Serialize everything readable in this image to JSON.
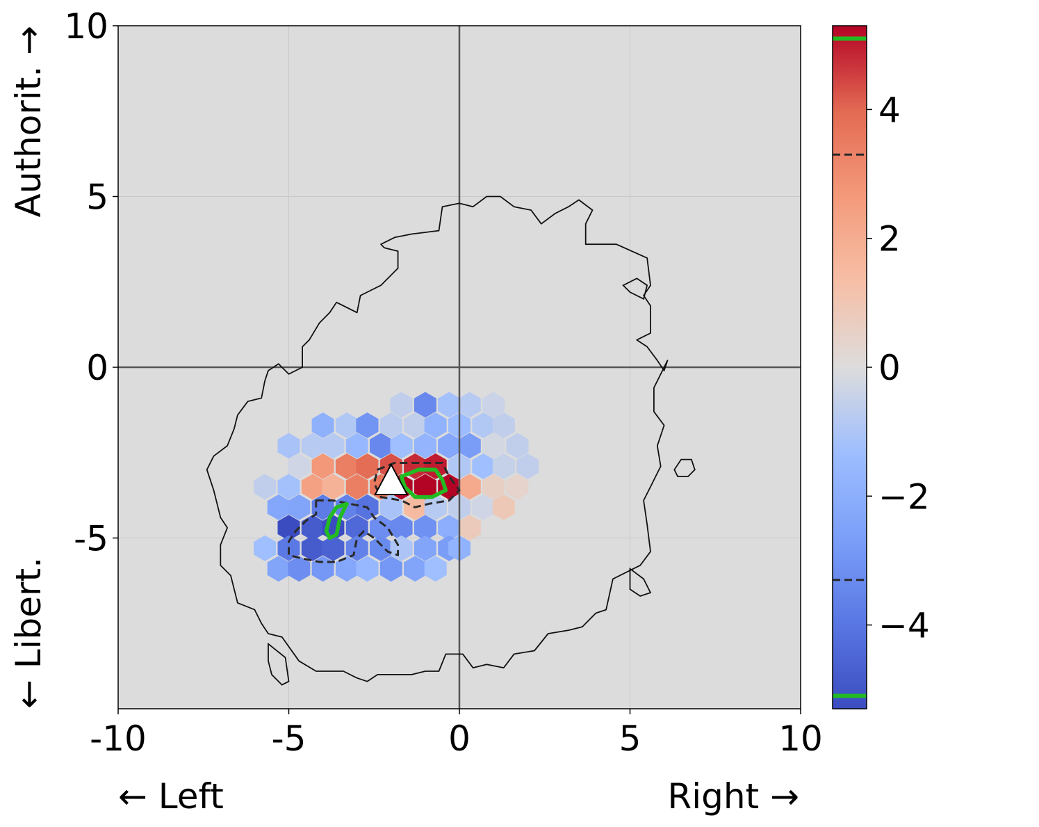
{
  "chart_data": {
    "type": "heatmap",
    "subtype": "hexbin political compass map",
    "xlim": [
      -10,
      10
    ],
    "ylim": [
      -10,
      10
    ],
    "x_ticks": [
      -10,
      -5,
      0,
      5,
      10
    ],
    "y_ticks": [
      -5,
      0,
      5,
      10
    ],
    "x_tick_labels": [
      "-10",
      "-5",
      "0",
      "5",
      "10"
    ],
    "y_tick_labels": [
      "-5",
      "0",
      "5",
      "10"
    ],
    "x_label_left": "← Left",
    "x_label_right": "Right →",
    "y_label_bottom": "← Libert.",
    "y_label_top": "Authorit. →",
    "grid": true,
    "background_color": "#dcdcdc",
    "colormap": "coolwarm",
    "colorbar": {
      "vmin": -5.3,
      "vmax": 5.3,
      "ticks": [
        -4,
        -2,
        0,
        2,
        4
      ],
      "tick_labels": [
        "−4",
        "−2",
        "0",
        "2",
        "4"
      ],
      "dashed_threshold_lines": [
        -3.3,
        3.3
      ],
      "green_threshold_lines": [
        -5.1,
        5.1
      ]
    },
    "outline_contour": [
      [
        -0.5,
        4.7
      ],
      [
        0.0,
        4.8
      ],
      [
        0.4,
        4.7
      ],
      [
        0.8,
        5.0
      ],
      [
        1.2,
        5.0
      ],
      [
        1.6,
        4.7
      ],
      [
        2.1,
        4.6
      ],
      [
        2.4,
        4.2
      ],
      [
        2.8,
        4.5
      ],
      [
        3.2,
        4.7
      ],
      [
        3.5,
        4.9
      ],
      [
        3.9,
        4.6
      ],
      [
        3.7,
        4.2
      ],
      [
        3.7,
        3.6
      ],
      [
        4.6,
        3.6
      ],
      [
        5.5,
        3.2
      ],
      [
        5.6,
        2.4
      ],
      [
        5.4,
        2.1
      ],
      [
        5.6,
        1.8
      ],
      [
        5.6,
        1.0
      ],
      [
        5.2,
        0.8
      ],
      [
        5.5,
        0.6
      ],
      [
        5.8,
        0.2
      ],
      [
        6.0,
        -0.1
      ],
      [
        6.1,
        0.2
      ],
      [
        5.7,
        -0.6
      ],
      [
        5.7,
        -1.3
      ],
      [
        6.0,
        -1.7
      ],
      [
        5.8,
        -2.3
      ],
      [
        5.9,
        -2.9
      ],
      [
        5.6,
        -3.5
      ],
      [
        5.4,
        -3.9
      ],
      [
        5.5,
        -4.6
      ],
      [
        5.6,
        -5.4
      ],
      [
        5.3,
        -5.8
      ],
      [
        4.9,
        -6.0
      ],
      [
        4.5,
        -6.2
      ],
      [
        4.3,
        -7.1
      ],
      [
        4.0,
        -7.2
      ],
      [
        3.6,
        -7.6
      ],
      [
        3.2,
        -7.7
      ],
      [
        2.6,
        -7.8
      ],
      [
        2.2,
        -8.3
      ],
      [
        1.6,
        -8.4
      ],
      [
        1.3,
        -8.8
      ],
      [
        0.8,
        -8.7
      ],
      [
        0.4,
        -8.8
      ],
      [
        0.1,
        -8.4
      ],
      [
        -0.4,
        -8.4
      ],
      [
        -0.6,
        -8.9
      ],
      [
        -1.0,
        -8.9
      ],
      [
        -1.4,
        -9.0
      ],
      [
        -2.4,
        -9.0
      ],
      [
        -2.7,
        -9.2
      ],
      [
        -3.0,
        -9.1
      ],
      [
        -3.4,
        -8.9
      ],
      [
        -4.2,
        -8.9
      ],
      [
        -4.7,
        -8.6
      ],
      [
        -5.2,
        -7.9
      ],
      [
        -5.6,
        -7.8
      ],
      [
        -5.8,
        -7.5
      ],
      [
        -6.0,
        -7.1
      ],
      [
        -6.5,
        -6.9
      ],
      [
        -6.7,
        -6.1
      ],
      [
        -7.0,
        -5.8
      ],
      [
        -7.0,
        -5.2
      ],
      [
        -6.8,
        -4.7
      ],
      [
        -7.0,
        -4.4
      ],
      [
        -7.2,
        -3.6
      ],
      [
        -7.4,
        -3.0
      ],
      [
        -7.2,
        -2.6
      ],
      [
        -6.8,
        -2.3
      ],
      [
        -6.6,
        -1.8
      ],
      [
        -6.5,
        -1.4
      ],
      [
        -6.2,
        -1.0
      ],
      [
        -5.8,
        -0.9
      ],
      [
        -5.7,
        -0.4
      ],
      [
        -5.6,
        -0.1
      ],
      [
        -5.3,
        0.1
      ],
      [
        -5.0,
        -0.2
      ],
      [
        -4.6,
        0.0
      ],
      [
        -4.6,
        0.6
      ],
      [
        -4.4,
        0.8
      ],
      [
        -4.1,
        1.3
      ],
      [
        -3.8,
        1.6
      ],
      [
        -3.6,
        1.9
      ],
      [
        -3.0,
        1.6
      ],
      [
        -2.9,
        2.1
      ],
      [
        -2.7,
        2.2
      ],
      [
        -2.3,
        2.4
      ],
      [
        -1.8,
        2.9
      ],
      [
        -1.8,
        3.4
      ],
      [
        -2.2,
        3.5
      ],
      [
        -2.3,
        3.6
      ],
      [
        -1.9,
        3.8
      ],
      [
        -1.4,
        3.9
      ],
      [
        -0.6,
        4.0
      ],
      [
        -0.5,
        4.7
      ]
    ],
    "outline_islands": [
      [
        [
          5.2,
          2.6
        ],
        [
          5.5,
          2.4
        ],
        [
          5.4,
          2.0
        ],
        [
          5.0,
          2.2
        ],
        [
          4.8,
          2.4
        ],
        [
          5.2,
          2.6
        ]
      ],
      [
        [
          6.5,
          -2.7
        ],
        [
          6.8,
          -2.7
        ],
        [
          6.9,
          -3.0
        ],
        [
          6.7,
          -3.2
        ],
        [
          6.4,
          -3.2
        ],
        [
          6.3,
          -3.0
        ],
        [
          6.5,
          -2.7
        ]
      ],
      [
        [
          5.0,
          -5.9
        ],
        [
          5.4,
          -6.2
        ],
        [
          5.6,
          -6.6
        ],
        [
          5.3,
          -6.7
        ],
        [
          5.0,
          -6.5
        ],
        [
          5.0,
          -5.9
        ]
      ],
      [
        [
          -5.6,
          -8.1
        ],
        [
          -5.1,
          -8.5
        ],
        [
          -5.0,
          -9.2
        ],
        [
          -5.2,
          -9.3
        ],
        [
          -5.5,
          -9.0
        ],
        [
          -5.6,
          -8.6
        ],
        [
          -5.6,
          -8.1
        ]
      ]
    ],
    "hex_cells": [
      [
        -1.7,
        -1.1,
        -0.6
      ],
      [
        -1.0,
        -1.1,
        -3.4
      ],
      [
        -0.3,
        -1.1,
        -1.2
      ],
      [
        0.3,
        -1.1,
        -0.8
      ],
      [
        1.0,
        -1.1,
        -0.4
      ],
      [
        -4.0,
        -1.7,
        -1.9
      ],
      [
        -3.3,
        -1.7,
        -0.9
      ],
      [
        -2.7,
        -1.7,
        -3.0
      ],
      [
        -2.0,
        -1.7,
        -0.7
      ],
      [
        -1.3,
        -1.7,
        -0.6
      ],
      [
        -0.7,
        -1.7,
        -1.8
      ],
      [
        0.0,
        -1.7,
        -1.4
      ],
      [
        0.7,
        -1.7,
        -0.9
      ],
      [
        1.3,
        -1.7,
        -0.6
      ],
      [
        -5.0,
        -2.3,
        -1.1
      ],
      [
        -4.3,
        -2.3,
        -0.8
      ],
      [
        -3.7,
        -2.3,
        -0.8
      ],
      [
        -3.0,
        -2.3,
        -1.6
      ],
      [
        -2.3,
        -2.3,
        -3.4
      ],
      [
        -1.7,
        -2.3,
        -1.3
      ],
      [
        -1.0,
        -2.3,
        -1.7
      ],
      [
        -0.3,
        -2.3,
        -2.3
      ],
      [
        0.3,
        -2.3,
        -2.7
      ],
      [
        1.0,
        -2.3,
        -0.2
      ],
      [
        1.7,
        -2.3,
        -0.6
      ],
      [
        -4.7,
        -2.9,
        -0.3
      ],
      [
        -4.0,
        -2.9,
        2.7
      ],
      [
        -3.3,
        -2.9,
        3.4
      ],
      [
        -2.7,
        -2.9,
        3.9
      ],
      [
        -2.0,
        -2.9,
        4.3
      ],
      [
        -1.3,
        -2.9,
        4.8
      ],
      [
        -0.7,
        -2.9,
        5.0
      ],
      [
        0.0,
        -2.9,
        -0.9
      ],
      [
        0.7,
        -2.9,
        -1.3
      ],
      [
        1.3,
        -2.9,
        -0.5
      ],
      [
        2.0,
        -2.9,
        -0.6
      ],
      [
        -5.7,
        -3.5,
        -0.6
      ],
      [
        -5.0,
        -3.5,
        -1.2
      ],
      [
        -4.3,
        -3.5,
        2.4
      ],
      [
        -3.7,
        -3.5,
        1.8
      ],
      [
        -3.0,
        -3.5,
        3.4
      ],
      [
        -2.3,
        -3.5,
        3.6
      ],
      [
        -1.7,
        -3.5,
        5.3
      ],
      [
        -1.0,
        -3.5,
        5.3
      ],
      [
        -0.3,
        -3.5,
        5.3
      ],
      [
        0.3,
        -3.5,
        2.1
      ],
      [
        1.0,
        -3.5,
        0.6
      ],
      [
        1.7,
        -3.5,
        0.4
      ],
      [
        -5.3,
        -4.1,
        -2.3
      ],
      [
        -4.7,
        -4.1,
        -2.4
      ],
      [
        -4.0,
        -4.1,
        -3.8
      ],
      [
        -3.3,
        -4.1,
        -3.6
      ],
      [
        -2.7,
        -4.1,
        -4.1
      ],
      [
        -2.0,
        -4.1,
        -1.1
      ],
      [
        -1.3,
        -4.1,
        1.5
      ],
      [
        -0.7,
        -4.1,
        -0.8
      ],
      [
        0.0,
        -4.1,
        -0.6
      ],
      [
        0.7,
        -4.1,
        -0.3
      ],
      [
        1.3,
        -4.1,
        0.9
      ],
      [
        -5.0,
        -4.7,
        -5.3
      ],
      [
        -4.3,
        -4.7,
        -4.8
      ],
      [
        -3.7,
        -4.7,
        -5.3
      ],
      [
        -3.0,
        -4.7,
        -4.4
      ],
      [
        -2.3,
        -4.7,
        -3.2
      ],
      [
        -1.7,
        -4.7,
        -3.4
      ],
      [
        -1.0,
        -4.7,
        -3.1
      ],
      [
        -0.3,
        -4.7,
        -2.0
      ],
      [
        0.3,
        -4.7,
        0.8
      ],
      [
        -5.7,
        -5.3,
        -1.3
      ],
      [
        -5.0,
        -5.3,
        -3.9
      ],
      [
        -4.3,
        -5.3,
        -4.8
      ],
      [
        -3.7,
        -5.3,
        -4.6
      ],
      [
        -3.0,
        -5.3,
        -3.6
      ],
      [
        -2.3,
        -5.3,
        -3.3
      ],
      [
        -1.7,
        -5.3,
        -1.0
      ],
      [
        -1.0,
        -5.3,
        -2.4
      ],
      [
        -0.3,
        -5.3,
        -2.7
      ],
      [
        0.0,
        -5.3,
        -1.8
      ],
      [
        -5.3,
        -5.9,
        -2.4
      ],
      [
        -4.7,
        -5.9,
        -3.2
      ],
      [
        -4.0,
        -5.9,
        -2.9
      ],
      [
        -3.3,
        -5.9,
        -2.3
      ],
      [
        -2.7,
        -5.9,
        -1.6
      ],
      [
        -2.0,
        -5.9,
        -2.9
      ],
      [
        -1.3,
        -5.9,
        -2.4
      ],
      [
        -0.7,
        -5.9,
        -1.3
      ]
    ],
    "dashed_contours": [
      [
        [
          -2.4,
          -3.0
        ],
        [
          -1.9,
          -2.8
        ],
        [
          -1.2,
          -2.8
        ],
        [
          -0.5,
          -2.8
        ],
        [
          -0.3,
          -3.2
        ],
        [
          0.0,
          -3.6
        ],
        [
          -0.3,
          -3.9
        ],
        [
          -0.9,
          -4.0
        ],
        [
          -1.3,
          -4.1
        ],
        [
          -1.7,
          -3.9
        ],
        [
          -2.3,
          -3.8
        ],
        [
          -2.5,
          -3.4
        ],
        [
          -2.4,
          -3.0
        ]
      ],
      [
        [
          -4.2,
          -3.9
        ],
        [
          -3.7,
          -3.9
        ],
        [
          -3.2,
          -4.0
        ],
        [
          -2.7,
          -4.1
        ],
        [
          -2.5,
          -4.4
        ],
        [
          -2.1,
          -4.7
        ],
        [
          -1.8,
          -5.2
        ],
        [
          -1.8,
          -5.5
        ],
        [
          -2.1,
          -5.4
        ],
        [
          -2.3,
          -5.2
        ],
        [
          -2.5,
          -5.0
        ],
        [
          -2.8,
          -4.8
        ],
        [
          -3.0,
          -5.0
        ],
        [
          -3.1,
          -5.5
        ],
        [
          -3.6,
          -5.7
        ],
        [
          -4.1,
          -5.7
        ],
        [
          -4.6,
          -5.6
        ],
        [
          -5.0,
          -5.5
        ],
        [
          -5.0,
          -5.1
        ],
        [
          -4.8,
          -4.8
        ],
        [
          -4.5,
          -4.5
        ],
        [
          -4.2,
          -4.3
        ],
        [
          -4.2,
          -3.9
        ]
      ]
    ],
    "green_contours": [
      [
        [
          -1.7,
          -3.2
        ],
        [
          -1.2,
          -3.0
        ],
        [
          -0.7,
          -3.0
        ],
        [
          -0.5,
          -3.3
        ],
        [
          -0.4,
          -3.6
        ],
        [
          -0.8,
          -3.8
        ],
        [
          -1.3,
          -3.8
        ],
        [
          -1.6,
          -3.5
        ],
        [
          -1.7,
          -3.2
        ]
      ],
      [
        [
          -3.6,
          -4.1
        ],
        [
          -3.3,
          -4.0
        ],
        [
          -3.5,
          -4.4
        ],
        [
          -3.6,
          -4.9
        ],
        [
          -3.8,
          -5.0
        ],
        [
          -3.9,
          -4.8
        ],
        [
          -3.8,
          -4.4
        ],
        [
          -3.6,
          -4.1
        ]
      ]
    ],
    "marker": {
      "shape": "triangle",
      "x": -2.0,
      "y": -3.4,
      "color": "#ffffff"
    }
  }
}
